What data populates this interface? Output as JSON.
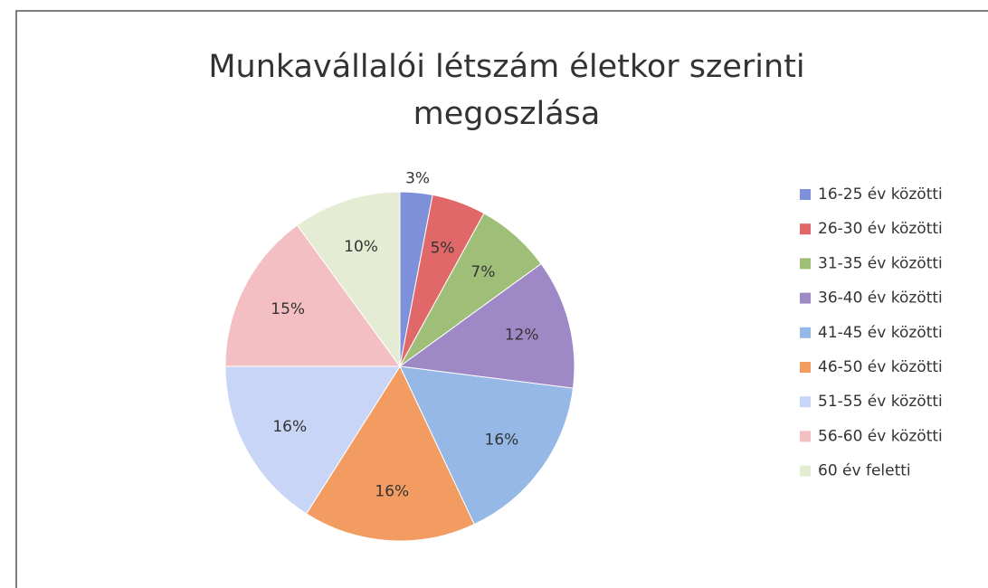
{
  "chart_data": {
    "type": "pie",
    "title": "Munkavállalói létszám életkor szerinti megoszlása",
    "categories": [
      "16-25 év közötti",
      "26-30 év közötti",
      "31-35 év közötti",
      "36-40 év közötti",
      "41-45 év közötti",
      "46-50 év közötti",
      "51-55 év közötti",
      "56-60 év közötti",
      "60 év feletti"
    ],
    "values": [
      3,
      5,
      7,
      12,
      16,
      16,
      16,
      15,
      10
    ],
    "value_labels": [
      "3%",
      "5%",
      "7%",
      "12%",
      "16%",
      "16%",
      "16%",
      "15%",
      "10%"
    ],
    "colors": [
      "#7f90db",
      "#e06868",
      "#9fbf78",
      "#9f88c6",
      "#95b8e6",
      "#f39c62",
      "#c9d5f6",
      "#f4bfc3",
      "#e4ecd3"
    ],
    "legend": "right"
  }
}
